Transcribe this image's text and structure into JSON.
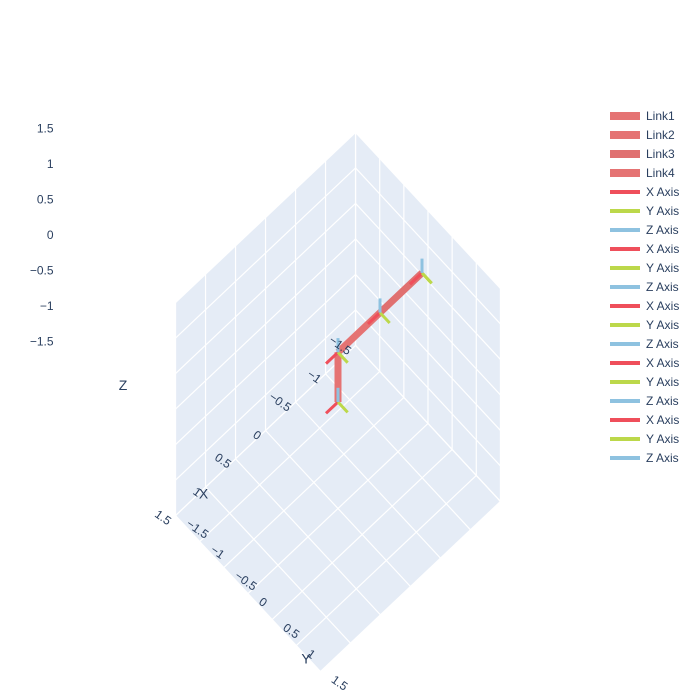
{
  "chart_data": {
    "type": "scatter3d",
    "axes": {
      "x": {
        "label": "X",
        "range": [
          -1.5,
          1.5
        ],
        "ticks": [
          "−1.5",
          "−1",
          "−0.5",
          "0",
          "0.5",
          "1",
          "1.5"
        ]
      },
      "y": {
        "label": "Y",
        "range": [
          -1.5,
          1.5
        ],
        "ticks": [
          "−1.5",
          "−1",
          "−0.5",
          "0",
          "0.5",
          "1",
          "1.5"
        ]
      },
      "z": {
        "label": "Z",
        "range": [
          -1.5,
          1.5
        ],
        "ticks": [
          "−1.5",
          "−1",
          "−0.5",
          "0",
          "0.5",
          "1",
          "1.5"
        ]
      }
    },
    "tick_values": [
      -1.5,
      -1,
      -0.5,
      0,
      0.5,
      1,
      1.5
    ],
    "grid": true,
    "legend_position": "top-right",
    "links": [
      {
        "name": "Link1",
        "color": "#e57373",
        "points": [
          [
            0,
            0,
            0
          ],
          [
            0,
            0,
            0.7
          ]
        ]
      },
      {
        "name": "Link2",
        "color": "#e57373",
        "points": [
          [
            0,
            0,
            0.7
          ],
          [
            -0.7,
            0,
            0.7
          ]
        ]
      },
      {
        "name": "Link3",
        "color": "#e07070",
        "points": [
          [
            -0.7,
            0,
            0.7
          ],
          [
            -1.4,
            0,
            0.7
          ]
        ]
      },
      {
        "name": "Link4",
        "color": "#e57373",
        "points": [
          [
            -1.4,
            0,
            0.7
          ],
          [
            -1.4,
            0,
            0.7
          ]
        ]
      }
    ],
    "frames": [
      {
        "origin": [
          0,
          0,
          0
        ]
      },
      {
        "origin": [
          0,
          0,
          0.7
        ]
      },
      {
        "origin": [
          -0.7,
          0,
          0.7
        ]
      },
      {
        "origin": [
          -1.4,
          0,
          0.7
        ]
      },
      {
        "origin": [
          -1.4,
          0,
          0.7
        ]
      }
    ],
    "axis_series": [
      {
        "name": "X Axis",
        "color": "#ef4f5b"
      },
      {
        "name": "Y Axis",
        "color": "#bcd84a"
      },
      {
        "name": "Z Axis",
        "color": "#8ec2e0"
      }
    ],
    "frame_axis_length": 0.2
  },
  "legend": {
    "items": [
      {
        "label": "Link1",
        "color": "#e57373",
        "kind": "link"
      },
      {
        "label": "Link2",
        "color": "#e57373",
        "kind": "link"
      },
      {
        "label": "Link3",
        "color": "#e07070",
        "kind": "link"
      },
      {
        "label": "Link4",
        "color": "#e57373",
        "kind": "link"
      },
      {
        "label": "X Axis",
        "color": "#ef4f5b",
        "kind": "axis"
      },
      {
        "label": "Y Axis",
        "color": "#bcd84a",
        "kind": "axis"
      },
      {
        "label": "Z Axis",
        "color": "#8ec2e0",
        "kind": "axis"
      },
      {
        "label": "X Axis",
        "color": "#ef4f5b",
        "kind": "axis"
      },
      {
        "label": "Y Axis",
        "color": "#bcd84a",
        "kind": "axis"
      },
      {
        "label": "Z Axis",
        "color": "#8ec2e0",
        "kind": "axis"
      },
      {
        "label": "X Axis",
        "color": "#ef4f5b",
        "kind": "axis"
      },
      {
        "label": "Y Axis",
        "color": "#bcd84a",
        "kind": "axis"
      },
      {
        "label": "Z Axis",
        "color": "#8ec2e0",
        "kind": "axis"
      },
      {
        "label": "X Axis",
        "color": "#ef4f5b",
        "kind": "axis"
      },
      {
        "label": "Y Axis",
        "color": "#bcd84a",
        "kind": "axis"
      },
      {
        "label": "Z Axis",
        "color": "#8ec2e0",
        "kind": "axis"
      },
      {
        "label": "X Axis",
        "color": "#ef4f5b",
        "kind": "axis"
      },
      {
        "label": "Y Axis",
        "color": "#bcd84a",
        "kind": "axis"
      },
      {
        "label": "Z Axis",
        "color": "#8ec2e0",
        "kind": "axis"
      }
    ]
  },
  "colors": {
    "pane_fill": "#e5ecf6",
    "grid": "#ffffff",
    "axis_text": "#2a3f5f"
  }
}
